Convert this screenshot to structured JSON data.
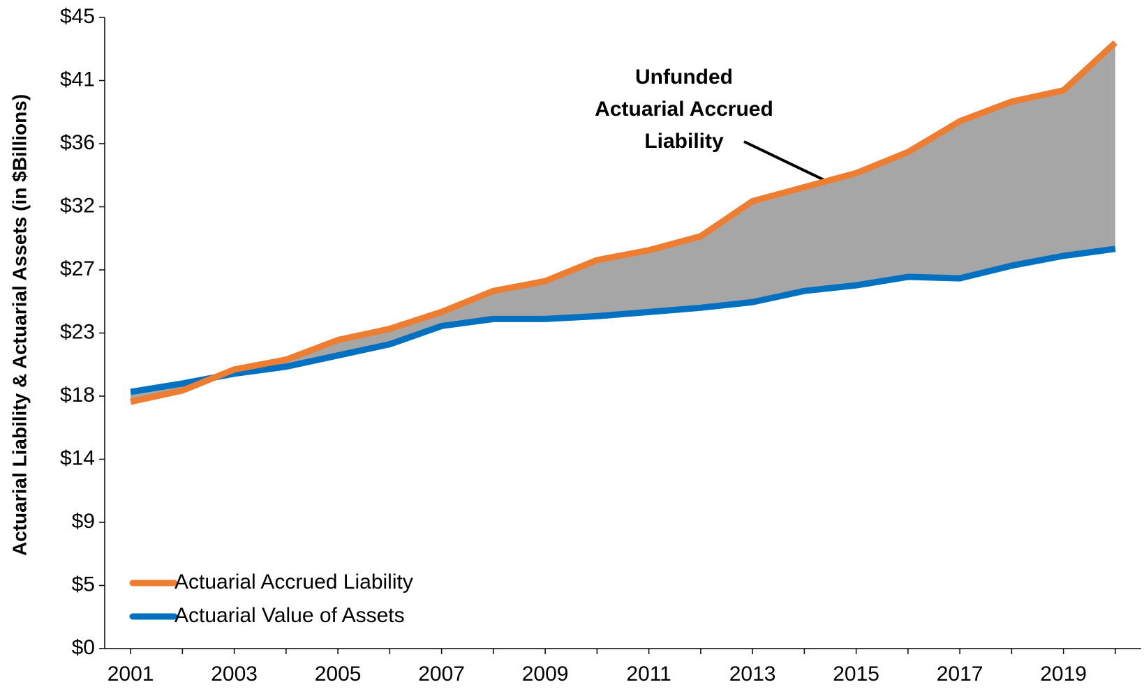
{
  "chart_data": {
    "type": "line",
    "y_label": "Actuarial Liability & Actuarial Assets (in $Billions)",
    "annotation": [
      "Unfunded",
      "Actuarial Accrued",
      "Liability"
    ],
    "categories": [
      "2001",
      null,
      "2003",
      null,
      "2005",
      null,
      "2007",
      null,
      "2009",
      null,
      "2011",
      null,
      "2013",
      null,
      "2015",
      null,
      "2017",
      null,
      "2019",
      null
    ],
    "series": [
      {
        "name": "Actuarial Accrued Liability",
        "color": "#ed7d31",
        "values": [
          17.6,
          18.4,
          19.9,
          20.6,
          22.0,
          22.8,
          24.0,
          25.5,
          26.2,
          27.7,
          28.4,
          29.4,
          31.9,
          32.9,
          33.9,
          35.4,
          37.6,
          39.0,
          39.8,
          43.2
        ]
      },
      {
        "name": "Actuarial Value of Assets",
        "color": "#0070c0",
        "values": [
          18.3,
          18.9,
          19.6,
          20.1,
          20.9,
          21.7,
          23.0,
          23.5,
          23.5,
          23.7,
          24.0,
          24.3,
          24.7,
          25.5,
          25.9,
          26.5,
          26.4,
          27.3,
          28.0,
          28.5
        ]
      }
    ],
    "fill_between": "#a6a6a6",
    "ylim": [
      0,
      45
    ],
    "yticks": [
      {
        "value": 0,
        "label": "$0"
      },
      {
        "value": 4.5,
        "label": "$5"
      },
      {
        "value": 9,
        "label": "$9"
      },
      {
        "value": 13.5,
        "label": "$14"
      },
      {
        "value": 18,
        "label": "$18"
      },
      {
        "value": 22.5,
        "label": "$23"
      },
      {
        "value": 27,
        "label": "$27"
      },
      {
        "value": 31.5,
        "label": "$32"
      },
      {
        "value": 36,
        "label": "$36"
      },
      {
        "value": 40.5,
        "label": "$41"
      },
      {
        "value": 45,
        "label": "$45"
      }
    ],
    "legend": "lower left",
    "grid": false
  }
}
